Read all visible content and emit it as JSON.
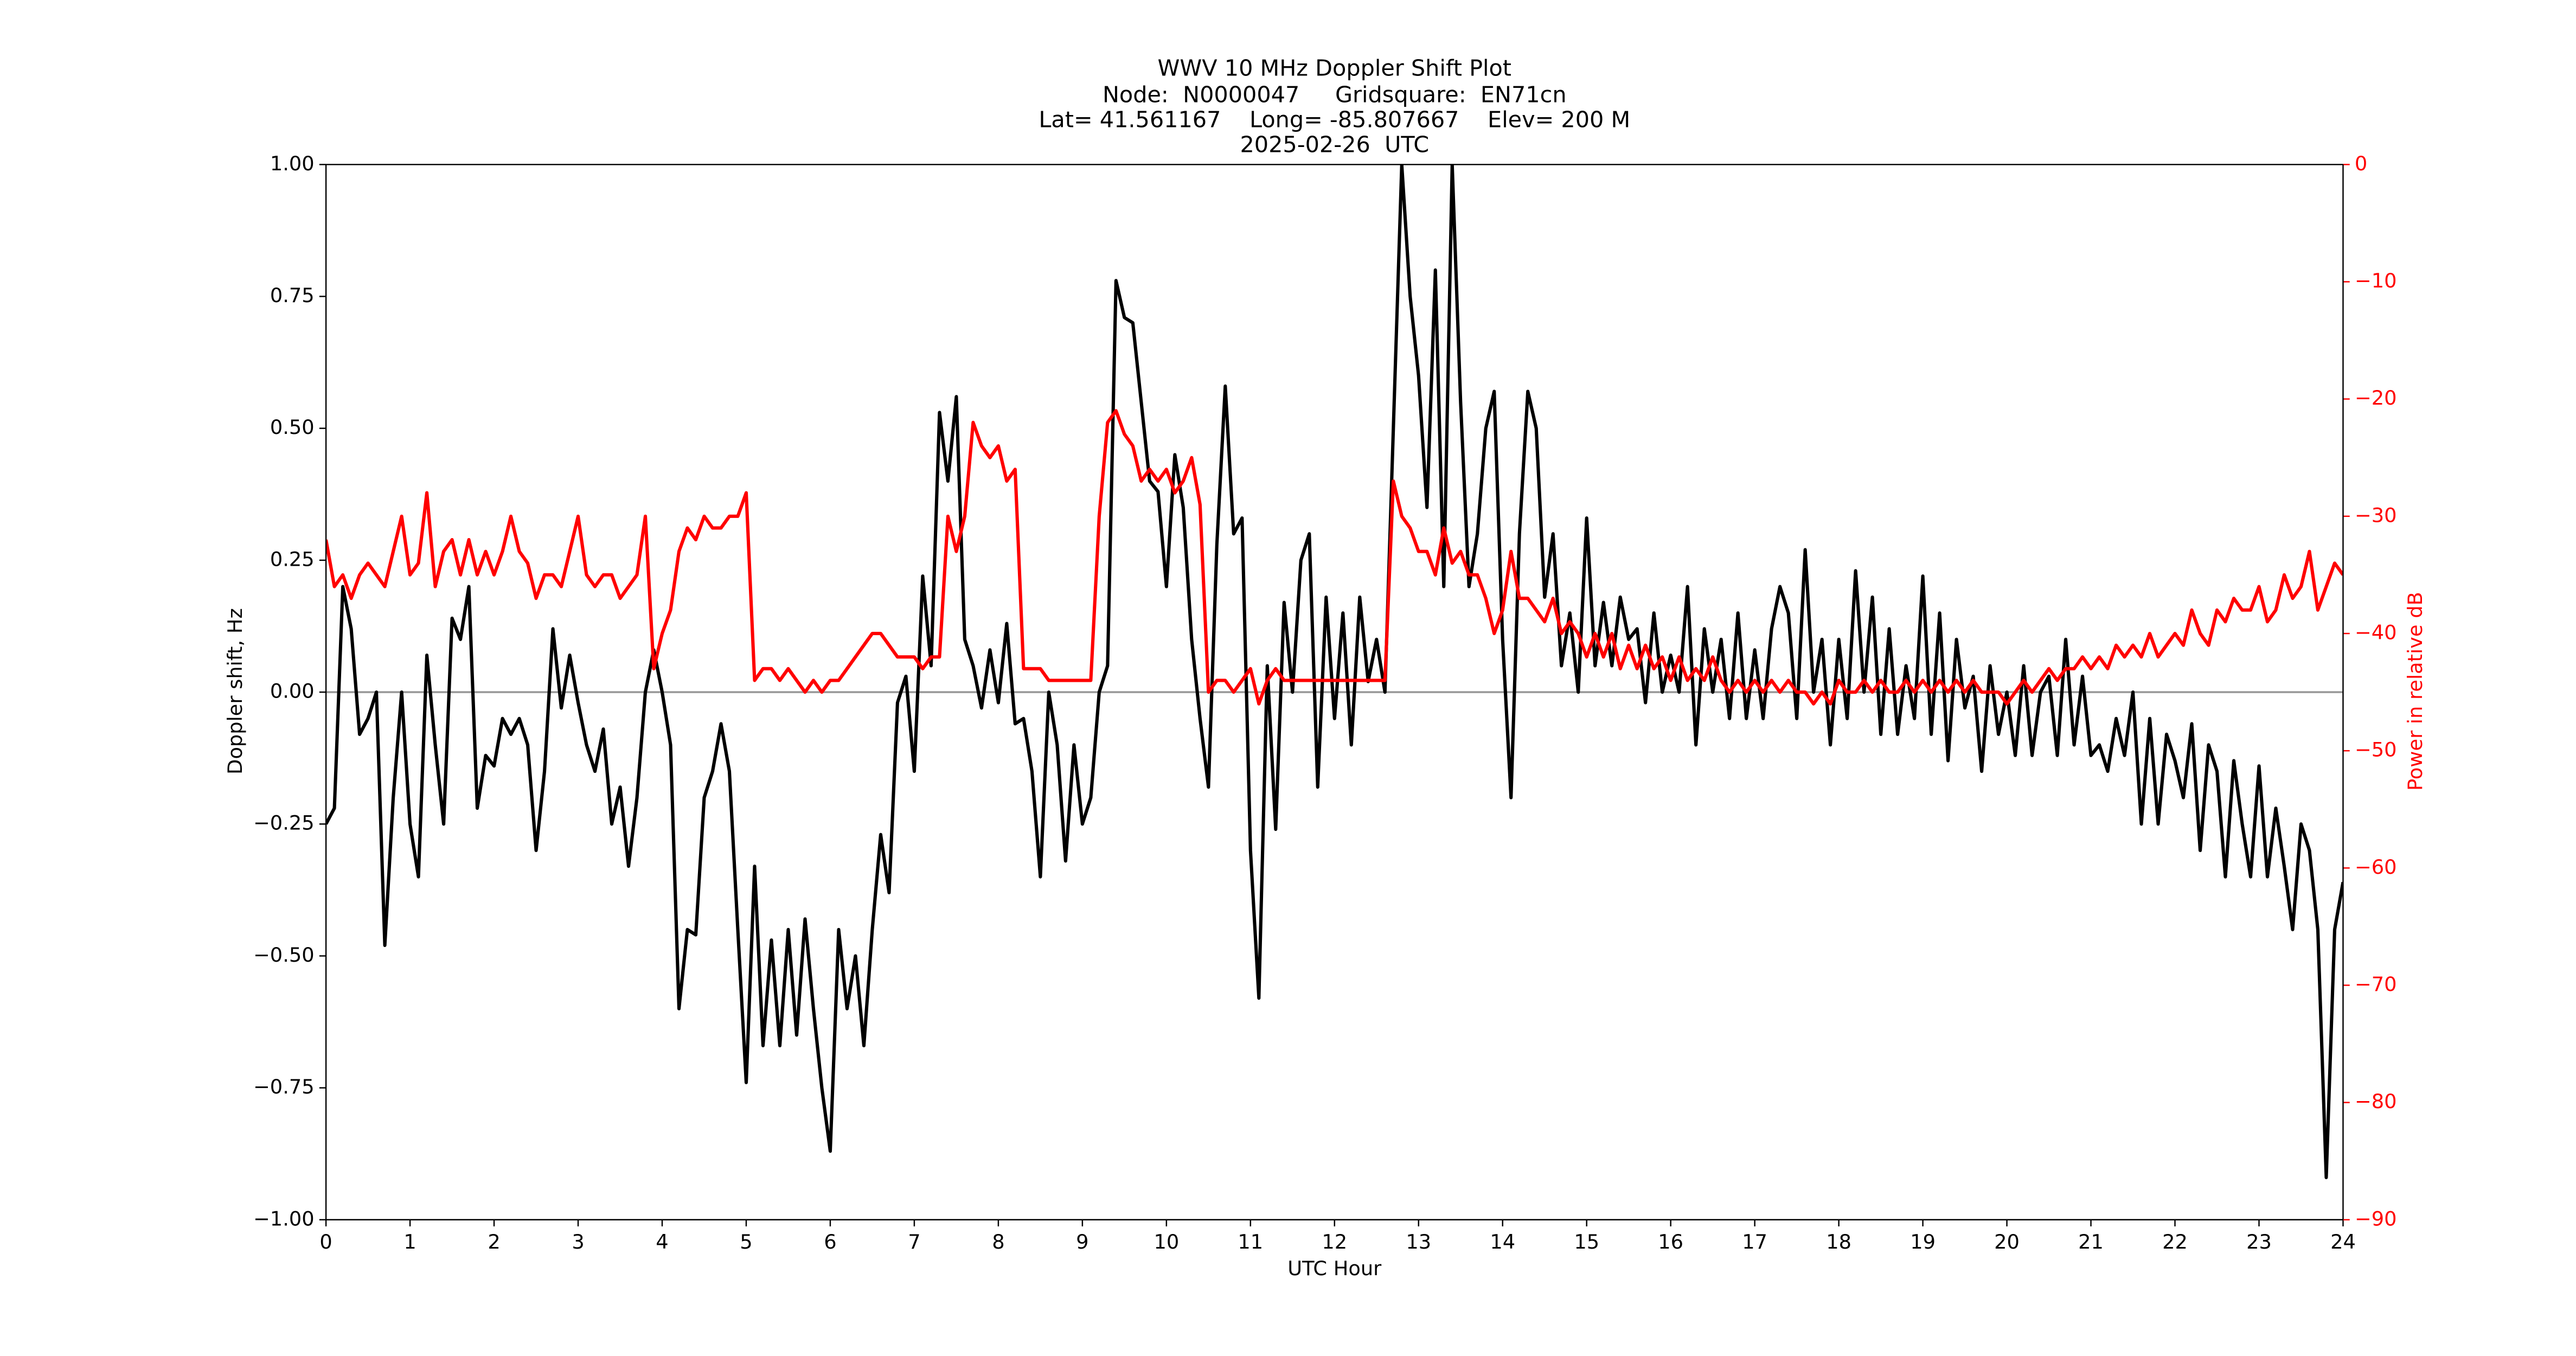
{
  "chart_data": {
    "type": "line",
    "title": [
      "WWV 10 MHz Doppler Shift Plot",
      "Node:  N0000047     Gridsquare:  EN71cn",
      "Lat= 41.561167    Long= -85.807667    Elev= 200 M",
      "2025-02-26  UTC"
    ],
    "xlabel": "UTC Hour",
    "ylabel": "Doppler shift, Hz",
    "y2label": "Power in relative dB",
    "xlim": [
      0,
      24
    ],
    "ylim": [
      -1,
      1
    ],
    "y2lim": [
      -90,
      0
    ],
    "xticks": [
      0,
      1,
      2,
      3,
      4,
      5,
      6,
      7,
      8,
      9,
      10,
      11,
      12,
      13,
      14,
      15,
      16,
      17,
      18,
      19,
      20,
      21,
      22,
      23,
      24
    ],
    "yticks": [
      {
        "value": -1,
        "label": "−1.00"
      },
      {
        "value": -0.75,
        "label": "−0.75"
      },
      {
        "value": -0.5,
        "label": "−0.50"
      },
      {
        "value": -0.25,
        "label": "−0.25"
      },
      {
        "value": 0,
        "label": "0.00"
      },
      {
        "value": 0.25,
        "label": "0.25"
      },
      {
        "value": 0.5,
        "label": "0.50"
      },
      {
        "value": 0.75,
        "label": "0.75"
      },
      {
        "value": 1,
        "label": "1.00"
      }
    ],
    "y2ticks": [
      {
        "value": -90,
        "label": "−90"
      },
      {
        "value": -80,
        "label": "−80"
      },
      {
        "value": -70,
        "label": "−70"
      },
      {
        "value": -60,
        "label": "−60"
      },
      {
        "value": -50,
        "label": "−50"
      },
      {
        "value": -40,
        "label": "−40"
      },
      {
        "value": -30,
        "label": "−30"
      },
      {
        "value": -20,
        "label": "−20"
      },
      {
        "value": -10,
        "label": "−10"
      },
      0
    ],
    "y2color": "#ff0000",
    "x": [
      0,
      0.1,
      0.2,
      0.3,
      0.4,
      0.5,
      0.6,
      0.7,
      0.8,
      0.9,
      1,
      1.1,
      1.2,
      1.3,
      1.4,
      1.5,
      1.6,
      1.7,
      1.8,
      1.9,
      2,
      2.1,
      2.2,
      2.3,
      2.4,
      2.5,
      2.6,
      2.7,
      2.8,
      2.9,
      3,
      3.1,
      3.2,
      3.3,
      3.4,
      3.5,
      3.6,
      3.7,
      3.8,
      3.9,
      4,
      4.1,
      4.2,
      4.3,
      4.4,
      4.5,
      4.6,
      4.7,
      4.8,
      4.9,
      5,
      5.1,
      5.2,
      5.3,
      5.4,
      5.5,
      5.6,
      5.7,
      5.8,
      5.9,
      6,
      6.1,
      6.2,
      6.3,
      6.4,
      6.5,
      6.6,
      6.7,
      6.8,
      6.9,
      7,
      7.1,
      7.2,
      7.3,
      7.4,
      7.5,
      7.6,
      7.7,
      7.8,
      7.9,
      8,
      8.1,
      8.2,
      8.3,
      8.4,
      8.5,
      8.6,
      8.7,
      8.8,
      8.9,
      9,
      9.1,
      9.2,
      9.3,
      9.4,
      9.5,
      9.6,
      9.7,
      9.8,
      9.9,
      10,
      10.1,
      10.2,
      10.3,
      10.4,
      10.5,
      10.6,
      10.7,
      10.8,
      10.9,
      11,
      11.1,
      11.2,
      11.3,
      11.4,
      11.5,
      11.6,
      11.7,
      11.8,
      11.9,
      12,
      12.1,
      12.2,
      12.3,
      12.4,
      12.5,
      12.6,
      12.7,
      12.8,
      12.9,
      13,
      13.1,
      13.2,
      13.3,
      13.4,
      13.5,
      13.6,
      13.7,
      13.8,
      13.9,
      14,
      14.1,
      14.2,
      14.3,
      14.4,
      14.5,
      14.6,
      14.7,
      14.8,
      14.9,
      15,
      15.1,
      15.2,
      15.3,
      15.4,
      15.5,
      15.6,
      15.7,
      15.8,
      15.9,
      16,
      16.1,
      16.2,
      16.3,
      16.4,
      16.5,
      16.6,
      16.7,
      16.8,
      16.9,
      17,
      17.1,
      17.2,
      17.3,
      17.4,
      17.5,
      17.6,
      17.7,
      17.8,
      17.9,
      18,
      18.1,
      18.2,
      18.3,
      18.4,
      18.5,
      18.6,
      18.7,
      18.8,
      18.9,
      19,
      19.1,
      19.2,
      19.3,
      19.4,
      19.5,
      19.6,
      19.7,
      19.8,
      19.9,
      20,
      20.1,
      20.2,
      20.3,
      20.4,
      20.5,
      20.6,
      20.7,
      20.8,
      20.9,
      21,
      21.1,
      21.2,
      21.3,
      21.4,
      21.5,
      21.6,
      21.7,
      21.8,
      21.9,
      22,
      22.1,
      22.2,
      22.3,
      22.4,
      22.5,
      22.6,
      22.7,
      22.8,
      22.9,
      23,
      23.1,
      23.2,
      23.3,
      23.4,
      23.5,
      23.6,
      23.7,
      23.8,
      23.9,
      24
    ],
    "series": [
      {
        "color": "#000000",
        "axis": "y",
        "values": [
          -0.25,
          -0.22,
          0.2,
          0.12,
          -0.08,
          -0.05,
          0.0,
          -0.48,
          -0.2,
          0.0,
          -0.25,
          -0.35,
          0.07,
          -0.1,
          -0.25,
          0.14,
          0.1,
          0.2,
          -0.22,
          -0.12,
          -0.14,
          -0.05,
          -0.08,
          -0.05,
          -0.1,
          -0.3,
          -0.15,
          0.12,
          -0.03,
          0.07,
          -0.02,
          -0.1,
          -0.15,
          -0.07,
          -0.25,
          -0.18,
          -0.33,
          -0.2,
          0.0,
          0.08,
          0.0,
          -0.1,
          -0.6,
          -0.45,
          -0.46,
          -0.2,
          -0.15,
          -0.06,
          -0.15,
          -0.45,
          -0.74,
          -0.33,
          -0.67,
          -0.47,
          -0.67,
          -0.45,
          -0.65,
          -0.43,
          -0.6,
          -0.75,
          -0.87,
          -0.45,
          -0.6,
          -0.5,
          -0.67,
          -0.45,
          -0.27,
          -0.38,
          -0.02,
          0.03,
          -0.15,
          0.22,
          0.05,
          0.53,
          0.4,
          0.56,
          0.1,
          0.05,
          -0.03,
          0.08,
          -0.02,
          0.13,
          -0.06,
          -0.05,
          -0.15,
          -0.35,
          0.0,
          -0.1,
          -0.32,
          -0.1,
          -0.25,
          -0.2,
          0.0,
          0.05,
          0.78,
          0.71,
          0.7,
          0.55,
          0.4,
          0.38,
          0.2,
          0.45,
          0.35,
          0.1,
          -0.05,
          -0.18,
          0.28,
          0.58,
          0.3,
          0.33,
          -0.3,
          -0.58,
          0.05,
          -0.26,
          0.17,
          0.0,
          0.25,
          0.3,
          -0.18,
          0.18,
          -0.05,
          0.15,
          -0.1,
          0.18,
          0.02,
          0.1,
          0.0,
          0.5,
          1.0,
          0.75,
          0.6,
          0.35,
          0.8,
          0.2,
          1.0,
          0.55,
          0.2,
          0.3,
          0.5,
          0.57,
          0.1,
          -0.2,
          0.3,
          0.57,
          0.5,
          0.18,
          0.3,
          0.05,
          0.15,
          0.0,
          0.33,
          0.05,
          0.17,
          0.05,
          0.18,
          0.1,
          0.12,
          -0.02,
          0.15,
          0.0,
          0.07,
          0.0,
          0.2,
          -0.1,
          0.12,
          0.0,
          0.1,
          -0.05,
          0.15,
          -0.05,
          0.08,
          -0.05,
          0.12,
          0.2,
          0.15,
          -0.05,
          0.27,
          0.0,
          0.1,
          -0.1,
          0.1,
          -0.05,
          0.23,
          0.0,
          0.18,
          -0.08,
          0.12,
          -0.08,
          0.05,
          -0.05,
          0.22,
          -0.08,
          0.15,
          -0.13,
          0.1,
          -0.03,
          0.03,
          -0.15,
          0.05,
          -0.08,
          0.0,
          -0.12,
          0.05,
          -0.12,
          0.0,
          0.03,
          -0.12,
          0.1,
          -0.1,
          0.03,
          -0.12,
          -0.1,
          -0.15,
          -0.05,
          -0.12,
          0.0,
          -0.25,
          -0.05,
          -0.25,
          -0.08,
          -0.13,
          -0.2,
          -0.06,
          -0.3,
          -0.1,
          -0.15,
          -0.35,
          -0.13,
          -0.25,
          -0.35,
          -0.14,
          -0.35,
          -0.22,
          -0.33,
          -0.45,
          -0.25,
          -0.3,
          -0.45,
          -0.92,
          -0.45,
          -0.36
        ]
      },
      {
        "color": "#ff0000",
        "axis": "y2",
        "values": [
          -32,
          -36,
          -35,
          -37,
          -35,
          -34,
          -35,
          -36,
          -33,
          -30,
          -35,
          -34,
          -28,
          -36,
          -33,
          -32,
          -35,
          -32,
          -35,
          -33,
          -35,
          -33,
          -30,
          -33,
          -34,
          -37,
          -35,
          -35,
          -36,
          -33,
          -30,
          -35,
          -36,
          -35,
          -35,
          -37,
          -36,
          -35,
          -30,
          -43,
          -40,
          -38,
          -33,
          -31,
          -32,
          -30,
          -31,
          -31,
          -30,
          -30,
          -28,
          -44,
          -43,
          -43,
          -44,
          -43,
          -44,
          -45,
          -44,
          -45,
          -44,
          -44,
          -43,
          -42,
          -41,
          -40,
          -40,
          -41,
          -42,
          -42,
          -42,
          -43,
          -42,
          -42,
          -30,
          -33,
          -30,
          -22,
          -24,
          -25,
          -24,
          -27,
          -26,
          -43,
          -43,
          -43,
          -44,
          -44,
          -44,
          -44,
          -44,
          -44,
          -30,
          -22,
          -21,
          -23,
          -24,
          -27,
          -26,
          -27,
          -26,
          -28,
          -27,
          -25,
          -29,
          -45,
          -44,
          -44,
          -45,
          -44,
          -43,
          -46,
          -44,
          -43,
          -44,
          -44,
          -44,
          -44,
          -44,
          -44,
          -44,
          -44,
          -44,
          -44,
          -44,
          -44,
          -44,
          -27,
          -30,
          -31,
          -33,
          -33,
          -35,
          -31,
          -34,
          -33,
          -35,
          -35,
          -37,
          -40,
          -38,
          -33,
          -37,
          -37,
          -38,
          -39,
          -37,
          -40,
          -39,
          -40,
          -42,
          -40,
          -42,
          -40,
          -43,
          -41,
          -43,
          -41,
          -43,
          -42,
          -44,
          -42,
          -44,
          -43,
          -44,
          -42,
          -44,
          -45,
          -44,
          -45,
          -44,
          -45,
          -44,
          -45,
          -44,
          -45,
          -45,
          -46,
          -45,
          -46,
          -44,
          -45,
          -45,
          -44,
          -45,
          -44,
          -45,
          -45,
          -44,
          -45,
          -44,
          -45,
          -44,
          -45,
          -44,
          -45,
          -44,
          -45,
          -45,
          -45,
          -46,
          -45,
          -44,
          -45,
          -44,
          -43,
          -44,
          -43,
          -43,
          -42,
          -43,
          -42,
          -43,
          -41,
          -42,
          -41,
          -42,
          -40,
          -42,
          -41,
          -40,
          -41,
          -38,
          -40,
          -41,
          -38,
          -39,
          -37,
          -38,
          -38,
          -36,
          -39,
          -38,
          -35,
          -37,
          -36,
          -33,
          -38,
          -36,
          -34,
          -35
        ]
      }
    ]
  }
}
